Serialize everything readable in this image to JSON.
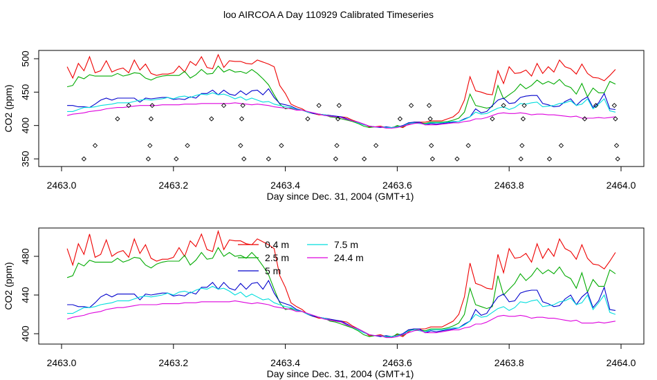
{
  "title": "loo AIRCOA A  Day 110929  Calibrated Timeseries",
  "colors": {
    "0.4 m": "#ee0000",
    "2.5 m": "#00aa00",
    "5 m": "#0000cc",
    "7.5 m": "#00dddd",
    "24.4 m": "#dd00dd"
  },
  "chart_data": [
    {
      "type": "line+scatter",
      "xlabel": "Day since Dec. 31, 2004 (GMT+1)",
      "ylabel": "CO2 (ppm)",
      "xlim": [
        2463.0,
        2464.0
      ],
      "ylim": [
        345,
        508
      ],
      "xticks": [
        "2463.0",
        "2463.2",
        "2463.4",
        "2463.6",
        "2463.8",
        "2464.0"
      ],
      "yticks": [
        "350",
        "400",
        "450",
        "500"
      ],
      "x": [
        2463.01,
        2463.02,
        2463.03,
        2463.04,
        2463.05,
        2463.06,
        2463.07,
        2463.08,
        2463.09,
        2463.1,
        2463.11,
        2463.12,
        2463.13,
        2463.14,
        2463.15,
        2463.16,
        2463.17,
        2463.18,
        2463.19,
        2463.2,
        2463.21,
        2463.22,
        2463.23,
        2463.24,
        2463.25,
        2463.26,
        2463.27,
        2463.28,
        2463.29,
        2463.3,
        2463.31,
        2463.32,
        2463.33,
        2463.34,
        2463.35,
        2463.36,
        2463.37,
        2463.38,
        2463.39,
        2463.4,
        2463.41,
        2463.42,
        2463.43,
        2463.44,
        2463.45,
        2463.46,
        2463.47,
        2463.48,
        2463.49,
        2463.5,
        2463.51,
        2463.52,
        2463.53,
        2463.54,
        2463.55,
        2463.56,
        2463.57,
        2463.58,
        2463.59,
        2463.6,
        2463.61,
        2463.62,
        2463.63,
        2463.64,
        2463.65,
        2463.66,
        2463.67,
        2463.68,
        2463.69,
        2463.7,
        2463.71,
        2463.72,
        2463.73,
        2463.74,
        2463.75,
        2463.76,
        2463.77,
        2463.78,
        2463.79,
        2463.8,
        2463.81,
        2463.82,
        2463.83,
        2463.84,
        2463.85,
        2463.86,
        2463.87,
        2463.88,
        2463.89,
        2463.9,
        2463.91,
        2463.92,
        2463.93,
        2463.94,
        2463.95,
        2463.96,
        2463.97,
        2463.98,
        2463.99
      ],
      "series": [
        {
          "name": "0.4 m",
          "values": [
            488,
            471,
            493,
            482,
            503,
            479,
            482,
            497,
            480,
            484,
            486,
            479,
            498,
            483,
            492,
            478,
            475,
            477,
            477,
            479,
            489,
            480,
            496,
            490,
            503,
            487,
            485,
            506,
            487,
            497,
            496,
            496,
            493,
            492,
            498,
            495,
            492,
            488,
            460,
            448,
            432,
            428,
            425,
            420,
            418,
            416,
            416,
            415,
            413,
            413,
            412,
            408,
            405,
            402,
            398,
            398,
            399,
            397,
            397,
            399,
            397,
            402,
            405,
            405,
            405,
            407,
            407,
            407,
            410,
            413,
            420,
            438,
            473,
            452,
            450,
            447,
            446,
            482,
            463,
            488,
            478,
            479,
            483,
            474,
            493,
            478,
            488,
            480,
            498,
            488,
            485,
            477,
            492,
            478,
            472,
            471,
            467,
            475,
            484
          ]
        },
        {
          "name": "2.5 m",
          "values": [
            458,
            460,
            473,
            470,
            476,
            474,
            474,
            474,
            474,
            478,
            474,
            476,
            479,
            478,
            471,
            468,
            472,
            474,
            475,
            475,
            475,
            481,
            471,
            476,
            484,
            477,
            478,
            489,
            480,
            484,
            480,
            481,
            478,
            484,
            478,
            470,
            461,
            446,
            432,
            425,
            426,
            424,
            423,
            420,
            418,
            417,
            416,
            413,
            412,
            410,
            408,
            406,
            403,
            399,
            397,
            398,
            398,
            397,
            396,
            400,
            398,
            404,
            404,
            404,
            403,
            405,
            405,
            405,
            406,
            408,
            411,
            420,
            447,
            430,
            428,
            426,
            428,
            460,
            440,
            446,
            452,
            462,
            455,
            460,
            468,
            462,
            466,
            462,
            469,
            460,
            457,
            447,
            463,
            443,
            456,
            449,
            449,
            466,
            462
          ]
        },
        {
          "name": "5 m",
          "values": [
            430,
            430,
            428,
            428,
            427,
            432,
            438,
            441,
            438,
            441,
            441,
            441,
            441,
            435,
            441,
            440,
            441,
            442,
            442,
            439,
            440,
            439,
            443,
            441,
            448,
            448,
            453,
            446,
            453,
            447,
            445,
            452,
            446,
            452,
            453,
            446,
            455,
            442,
            433,
            431,
            429,
            425,
            423,
            420,
            418,
            417,
            416,
            415,
            414,
            413,
            410,
            407,
            405,
            402,
            399,
            398,
            397,
            398,
            397,
            398,
            400,
            404,
            405,
            405,
            401,
            403,
            402,
            403,
            404,
            405,
            406,
            410,
            413,
            425,
            419,
            421,
            430,
            438,
            441,
            433,
            434,
            442,
            444,
            445,
            445,
            433,
            431,
            428,
            429,
            436,
            440,
            430,
            438,
            443,
            427,
            434,
            448,
            425,
            424
          ]
        },
        {
          "name": "7.5 m",
          "values": [
            421,
            421,
            424,
            427,
            427,
            428,
            430,
            431,
            432,
            434,
            434,
            434,
            436,
            438,
            439,
            438,
            439,
            440,
            442,
            440,
            443,
            444,
            442,
            445,
            447,
            446,
            449,
            446,
            447,
            444,
            440,
            443,
            438,
            441,
            438,
            435,
            436,
            432,
            430,
            428,
            427,
            424,
            423,
            420,
            419,
            417,
            416,
            414,
            413,
            412,
            409,
            407,
            404,
            401,
            399,
            398,
            398,
            397,
            397,
            398,
            399,
            403,
            404,
            403,
            402,
            404,
            404,
            404,
            405,
            406,
            406,
            409,
            413,
            420,
            417,
            418,
            422,
            426,
            428,
            424,
            427,
            433,
            432,
            434,
            435,
            428,
            429,
            430,
            433,
            434,
            437,
            430,
            432,
            440,
            425,
            432,
            440,
            422,
            420
          ]
        },
        {
          "name": "24.4 m",
          "values": [
            415,
            417,
            418,
            419,
            421,
            422,
            423,
            425,
            426,
            427,
            427,
            428,
            429,
            430,
            430,
            430,
            430,
            431,
            431,
            431,
            431,
            432,
            432,
            432,
            433,
            433,
            433,
            433,
            433,
            433,
            434,
            433,
            432,
            431,
            432,
            431,
            430,
            428,
            427,
            426,
            425,
            423,
            423,
            421,
            419,
            417,
            415,
            414,
            413,
            412,
            409,
            407,
            405,
            402,
            399,
            398,
            398,
            396,
            396,
            397,
            399,
            401,
            403,
            404,
            401,
            401,
            401,
            402,
            403,
            404,
            404,
            406,
            407,
            410,
            410,
            412,
            415,
            418,
            419,
            418,
            418,
            419,
            418,
            416,
            417,
            417,
            416,
            416,
            415,
            414,
            413,
            414,
            411,
            411,
            411,
            412,
            411,
            412,
            413
          ]
        }
      ],
      "markers": [
        {
          "x": 2463.04,
          "y": 350
        },
        {
          "x": 2463.06,
          "y": 370
        },
        {
          "x": 2463.1,
          "y": 410
        },
        {
          "x": 2463.12,
          "y": 430
        },
        {
          "x": 2463.155,
          "y": 350
        },
        {
          "x": 2463.158,
          "y": 370
        },
        {
          "x": 2463.16,
          "y": 410
        },
        {
          "x": 2463.162,
          "y": 430
        },
        {
          "x": 2463.205,
          "y": 350
        },
        {
          "x": 2463.225,
          "y": 370
        },
        {
          "x": 2463.268,
          "y": 410
        },
        {
          "x": 2463.29,
          "y": 430
        },
        {
          "x": 2463.32,
          "y": 370
        },
        {
          "x": 2463.322,
          "y": 410
        },
        {
          "x": 2463.324,
          "y": 430
        },
        {
          "x": 2463.326,
          "y": 350
        },
        {
          "x": 2463.37,
          "y": 350
        },
        {
          "x": 2463.393,
          "y": 370
        },
        {
          "x": 2463.44,
          "y": 410
        },
        {
          "x": 2463.46,
          "y": 430
        },
        {
          "x": 2463.49,
          "y": 350
        },
        {
          "x": 2463.492,
          "y": 370
        },
        {
          "x": 2463.494,
          "y": 410
        },
        {
          "x": 2463.496,
          "y": 430
        },
        {
          "x": 2463.541,
          "y": 350
        },
        {
          "x": 2463.562,
          "y": 370
        },
        {
          "x": 2463.605,
          "y": 410
        },
        {
          "x": 2463.625,
          "y": 430
        },
        {
          "x": 2463.657,
          "y": 430
        },
        {
          "x": 2463.659,
          "y": 410
        },
        {
          "x": 2463.661,
          "y": 370
        },
        {
          "x": 2463.663,
          "y": 350
        },
        {
          "x": 2463.707,
          "y": 350
        },
        {
          "x": 2463.727,
          "y": 370
        },
        {
          "x": 2463.77,
          "y": 410
        },
        {
          "x": 2463.79,
          "y": 430
        },
        {
          "x": 2463.821,
          "y": 350
        },
        {
          "x": 2463.823,
          "y": 370
        },
        {
          "x": 2463.825,
          "y": 410
        },
        {
          "x": 2463.827,
          "y": 430
        },
        {
          "x": 2463.872,
          "y": 350
        },
        {
          "x": 2463.893,
          "y": 370
        },
        {
          "x": 2463.935,
          "y": 410
        },
        {
          "x": 2463.955,
          "y": 430
        },
        {
          "x": 2463.988,
          "y": 430
        },
        {
          "x": 2463.99,
          "y": 410
        },
        {
          "x": 2463.992,
          "y": 370
        },
        {
          "x": 2463.994,
          "y": 350
        }
      ]
    },
    {
      "type": "line",
      "xlabel": "Day since Dec. 31, 2004 (GMT+1)",
      "ylabel": "CO2 (ppm)",
      "xlim": [
        2463.0,
        2464.0
      ],
      "ylim": [
        393,
        507
      ],
      "xticks": [
        "2463.0",
        "2463.2",
        "2463.4",
        "2463.6",
        "2463.8",
        "2464.0"
      ],
      "yticks": [
        "400",
        "440",
        "480"
      ],
      "legend": {
        "position": "top-center",
        "entries": [
          "0.4 m",
          "2.5 m",
          "5 m",
          "7.5 m",
          "24.4 m"
        ]
      },
      "series_ref": "same series as panel 1"
    }
  ]
}
